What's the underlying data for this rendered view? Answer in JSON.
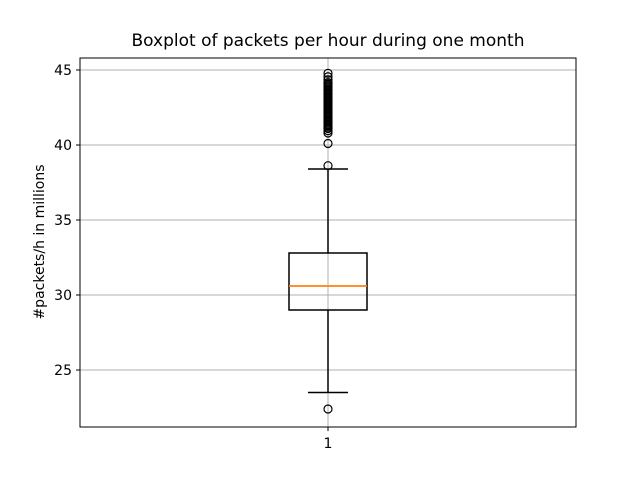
{
  "chart_data": {
    "type": "boxplot",
    "title": "Boxplot of packets per hour during one month",
    "ylabel": "#packets/h in millions",
    "xlabel": "",
    "xtick_labels": [
      "1"
    ],
    "ytick_values": [
      25,
      30,
      35,
      40,
      45
    ],
    "ylim": [
      21.2,
      45.8
    ],
    "grid": true,
    "legend": "none",
    "series": [
      {
        "position": 1,
        "label": "1",
        "q1": 29.0,
        "median": 30.6,
        "q3": 32.8,
        "whisker_low": 23.5,
        "whisker_high": 38.4,
        "outliers_low": [
          22.4
        ],
        "outliers_high": [
          38.62,
          40.1,
          40.8,
          40.95,
          41.1,
          41.19,
          41.28,
          41.37,
          41.46,
          41.55,
          41.64,
          41.73,
          41.82,
          41.91,
          42.0,
          42.09,
          42.18,
          42.27,
          42.36,
          42.45,
          42.54,
          42.63,
          42.72,
          42.81,
          42.9,
          42.99,
          43.08,
          43.17,
          43.26,
          43.35,
          43.44,
          43.53,
          43.62,
          43.71,
          43.8,
          43.89,
          43.98,
          44.07,
          44.16,
          44.35,
          44.55,
          44.78
        ]
      }
    ],
    "colors": {
      "box": "#000000",
      "median": "#ff7f0e",
      "grid": "#b0b0b0",
      "spine": "#000000",
      "text": "#000000",
      "background": "#ffffff"
    }
  }
}
